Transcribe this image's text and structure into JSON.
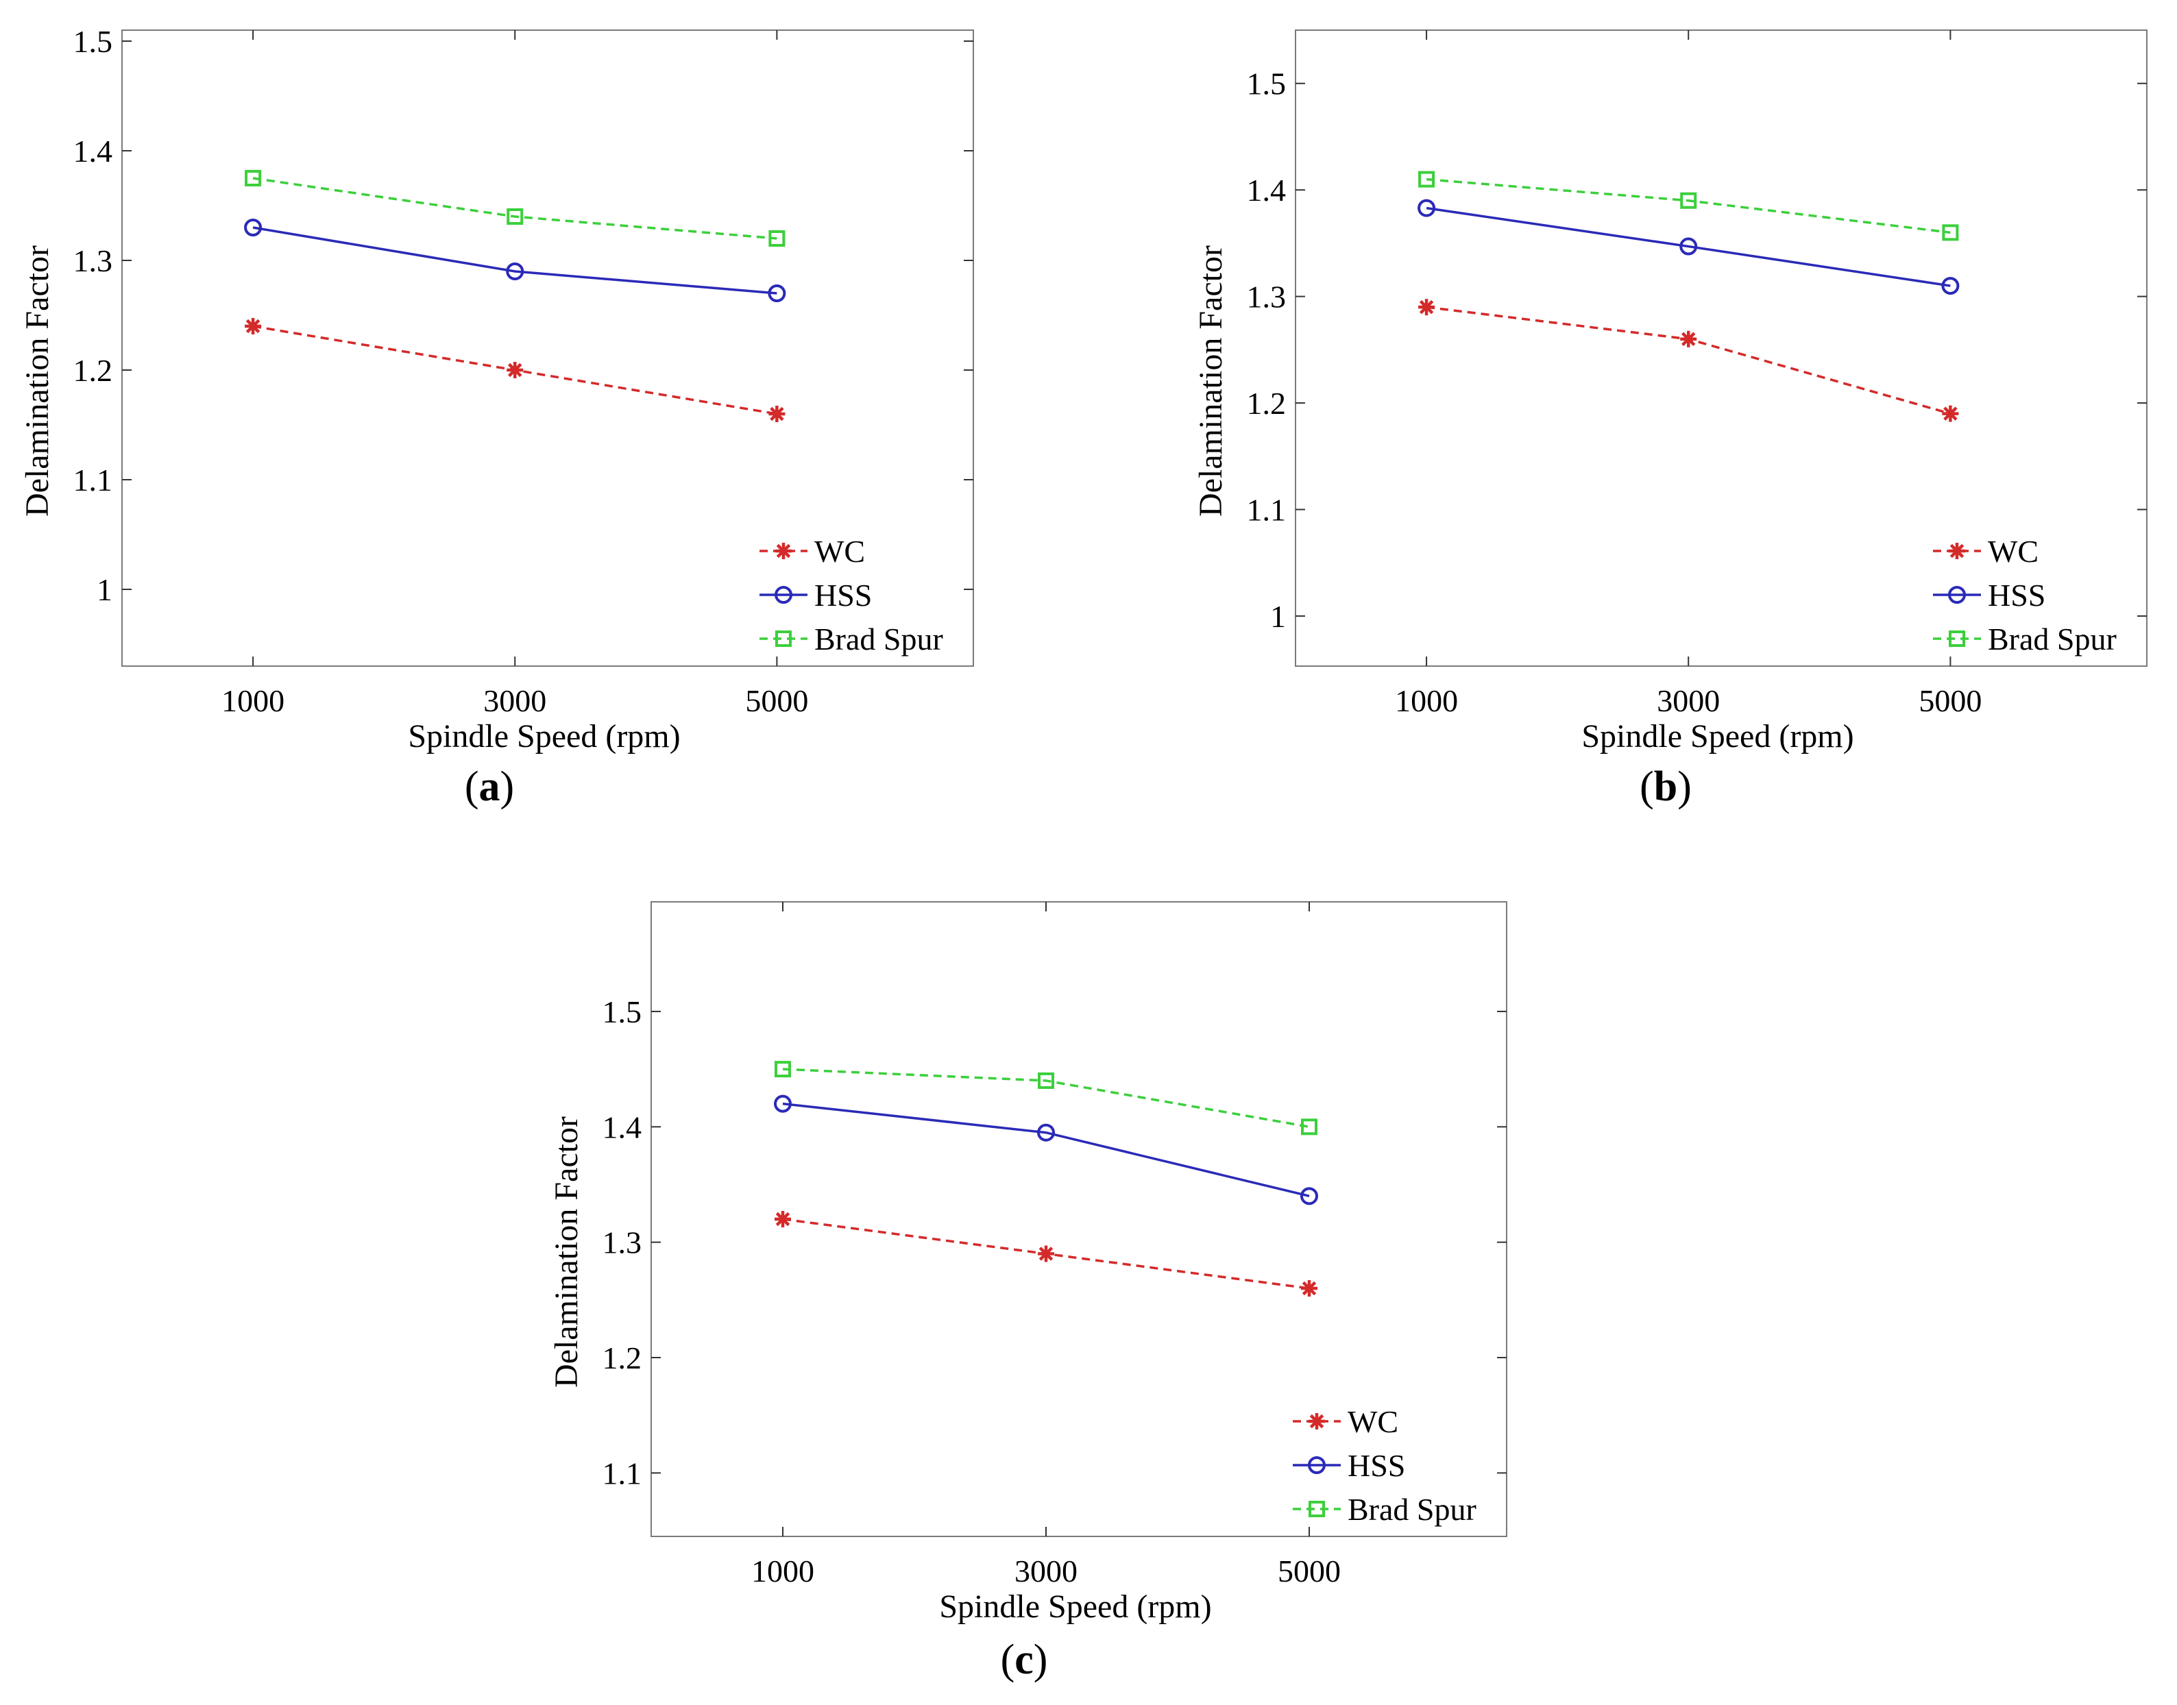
{
  "chart_data": [
    {
      "type": "line",
      "panel_label": "a",
      "xlabel": "Spindle Speed (rpm)",
      "ylabel": "Delamination Factor",
      "x": [
        1000,
        3000,
        5000
      ],
      "x_tick_labels": [
        "1000",
        "3000",
        "5000"
      ],
      "xlim": [
        0,
        6500
      ],
      "ylim": [
        0.93,
        1.51
      ],
      "y_ticks": [
        1,
        1.1,
        1.2,
        1.3,
        1.4,
        1.5
      ],
      "y_tick_labels": [
        "1",
        "1.1",
        "1.2",
        "1.3",
        "1.4",
        "1.5"
      ],
      "legend_position": "bottom-right",
      "series": [
        {
          "name": "WC",
          "color": "#d42a2a",
          "line": "dashed",
          "marker": "star",
          "values": [
            1.24,
            1.2,
            1.16
          ]
        },
        {
          "name": "HSS",
          "color": "#2a2ab8",
          "line": "solid",
          "marker": "circle",
          "values": [
            1.33,
            1.29,
            1.27
          ]
        },
        {
          "name": "Brad Spur",
          "color": "#3ccf3c",
          "line": "dashed",
          "marker": "square",
          "values": [
            1.375,
            1.34,
            1.32
          ]
        }
      ]
    },
    {
      "type": "line",
      "panel_label": "b",
      "xlabel": "Spindle Speed (rpm)",
      "ylabel": "Delamination Factor",
      "x": [
        1000,
        3000,
        5000
      ],
      "x_tick_labels": [
        "1000",
        "3000",
        "5000"
      ],
      "xlim": [
        0,
        6500
      ],
      "ylim": [
        0.953,
        1.55
      ],
      "y_ticks": [
        1,
        1.1,
        1.2,
        1.3,
        1.4,
        1.5
      ],
      "y_tick_labels": [
        "1",
        "1.1",
        "1.2",
        "1.3",
        "1.4",
        "1.5"
      ],
      "legend_position": "bottom-right",
      "series": [
        {
          "name": "WC",
          "color": "#d42a2a",
          "line": "dashed",
          "marker": "star",
          "values": [
            1.29,
            1.26,
            1.19
          ]
        },
        {
          "name": "HSS",
          "color": "#2a2ab8",
          "line": "solid",
          "marker": "circle",
          "values": [
            1.383,
            1.347,
            1.31
          ]
        },
        {
          "name": "Brad Spur",
          "color": "#3ccf3c",
          "line": "dashed",
          "marker": "square",
          "values": [
            1.41,
            1.39,
            1.36
          ]
        }
      ]
    },
    {
      "type": "line",
      "panel_label": "c",
      "xlabel": "Spindle Speed (rpm)",
      "ylabel": "Delamination Factor",
      "x": [
        1000,
        3000,
        5000
      ],
      "x_tick_labels": [
        "1000",
        "3000",
        "5000"
      ],
      "xlim": [
        0,
        6500
      ],
      "ylim": [
        1.045,
        1.595
      ],
      "y_ticks": [
        1.1,
        1.2,
        1.3,
        1.4,
        1.5
      ],
      "y_tick_labels": [
        "1.1",
        "1.2",
        "1.3",
        "1.4",
        "1.5"
      ],
      "legend_position": "bottom-right",
      "series": [
        {
          "name": "WC",
          "color": "#d42a2a",
          "line": "dashed",
          "marker": "star",
          "values": [
            1.32,
            1.29,
            1.26
          ]
        },
        {
          "name": "HSS",
          "color": "#2a2ab8",
          "line": "solid",
          "marker": "circle",
          "values": [
            1.42,
            1.395,
            1.34
          ]
        },
        {
          "name": "Brad Spur",
          "color": "#3ccf3c",
          "line": "dashed",
          "marker": "square",
          "values": [
            1.45,
            1.44,
            1.4
          ]
        }
      ]
    }
  ]
}
